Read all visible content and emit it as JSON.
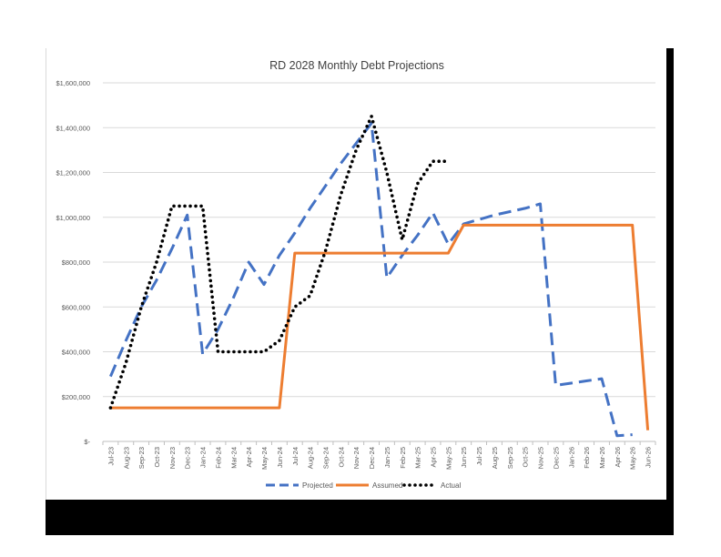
{
  "chart_data": {
    "type": "line",
    "title": "RD 2028 Monthly Debt Projections",
    "xlabel": "",
    "ylabel": "",
    "ylim": [
      0,
      1600000
    ],
    "yticks": [
      0,
      200000,
      400000,
      600000,
      800000,
      1000000,
      1200000,
      1400000,
      1600000
    ],
    "ytick_labels": [
      "$-",
      "$200,000",
      "$400,000",
      "$600,000",
      "$800,000",
      "$1,000,000",
      "$1,200,000",
      "$1,400,000",
      "$1,600,000"
    ],
    "grid": true,
    "legend_position": "bottom",
    "categories": [
      "Jul-23",
      "Aug-23",
      "Sep-23",
      "Oct-23",
      "Nov-23",
      "Dec-23",
      "Jan-24",
      "Feb-24",
      "Mar-24",
      "Apr-24",
      "May-24",
      "Jun-24",
      "Jul-24",
      "Aug-24",
      "Sep-24",
      "Oct-24",
      "Nov-24",
      "Dec-24",
      "Jan-25",
      "Feb-25",
      "Mar-25",
      "Apr-25",
      "May-25",
      "Jun-25",
      "Jul-25",
      "Aug-25",
      "Sep-25",
      "Oct-25",
      "Nov-25",
      "Dec-25",
      "Jan-26",
      "Feb-26",
      "Mar-26",
      "Apr-26",
      "May-26",
      "Jun-26"
    ],
    "series": [
      {
        "name": "Projected",
        "color": "#4472c4",
        "dash": "dashed",
        "values": [
          290000,
          450000,
          600000,
          720000,
          860000,
          1010000,
          390000,
          500000,
          640000,
          800000,
          700000,
          830000,
          930000,
          1040000,
          1140000,
          1240000,
          1330000,
          1420000,
          730000,
          830000,
          920000,
          1020000,
          880000,
          970000,
          990000,
          1010000,
          1025000,
          1040000,
          1060000,
          250000,
          260000,
          270000,
          280000,
          25000,
          30000,
          null
        ]
      },
      {
        "name": "Assumed",
        "color": "#ed7d31",
        "dash": "solid",
        "values": [
          150000,
          150000,
          150000,
          150000,
          150000,
          150000,
          150000,
          150000,
          150000,
          150000,
          150000,
          150000,
          840000,
          840000,
          840000,
          840000,
          840000,
          840000,
          840000,
          840000,
          840000,
          840000,
          840000,
          965000,
          965000,
          965000,
          965000,
          965000,
          965000,
          965000,
          965000,
          965000,
          965000,
          965000,
          965000,
          50000
        ]
      },
      {
        "name": "Actual",
        "color": "#000000",
        "dash": "dotted",
        "values": [
          150000,
          350000,
          600000,
          800000,
          1050000,
          1050000,
          1050000,
          400000,
          400000,
          400000,
          400000,
          450000,
          600000,
          650000,
          850000,
          1100000,
          1300000,
          1450000,
          1200000,
          900000,
          1150000,
          1250000,
          1250000,
          null,
          null,
          null,
          null,
          null,
          null,
          null,
          null,
          null,
          null,
          null,
          null,
          null
        ]
      }
    ]
  }
}
